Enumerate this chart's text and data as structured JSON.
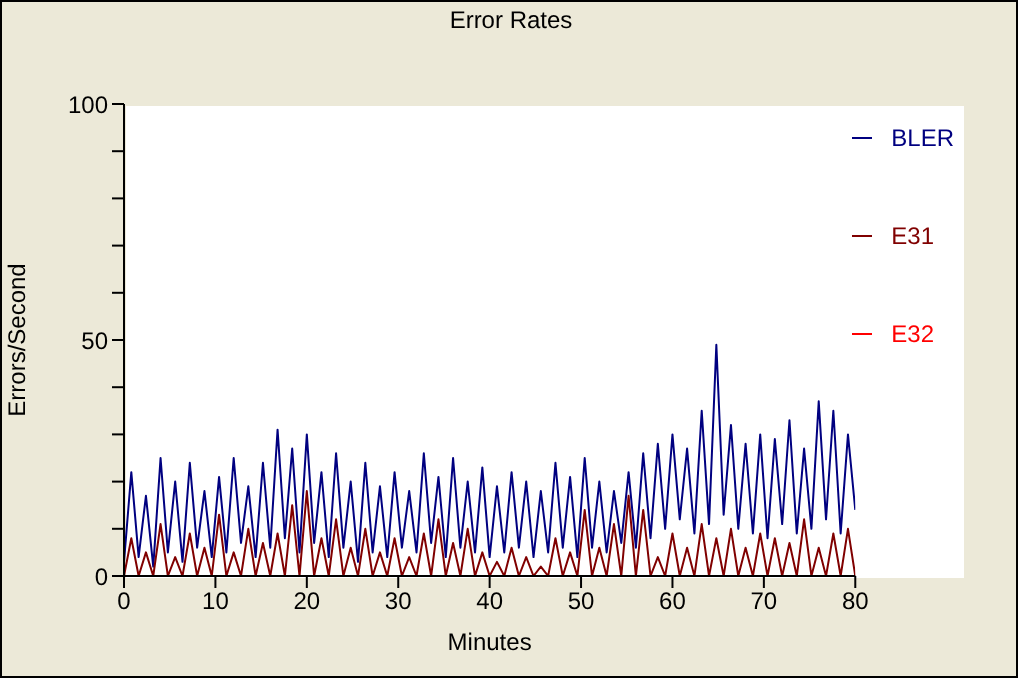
{
  "chart_data": {
    "type": "line",
    "title": "Error Rates",
    "xlabel": "Minutes",
    "ylabel": "Errors/Second",
    "x": [
      0,
      0.8,
      1.6,
      2.4,
      3.2,
      4,
      4.8,
      5.6,
      6.4,
      7.2,
      8,
      8.8,
      9.6,
      10.4,
      11.2,
      12,
      12.8,
      13.6,
      14.4,
      15.2,
      16,
      16.8,
      17.6,
      18.4,
      19.2,
      20,
      20.8,
      21.6,
      22.4,
      23.2,
      24,
      24.8,
      25.6,
      26.4,
      27.2,
      28,
      28.8,
      29.6,
      30.4,
      31.2,
      32,
      32.8,
      33.6,
      34.4,
      35.2,
      36,
      36.8,
      37.6,
      38.4,
      39.2,
      40,
      40.8,
      41.6,
      42.4,
      43.2,
      44,
      44.8,
      45.6,
      46.4,
      47.2,
      48,
      48.8,
      49.6,
      50.4,
      51.2,
      52,
      52.8,
      53.6,
      54.4,
      55.2,
      56,
      56.8,
      57.6,
      58.4,
      59.2,
      60,
      60.8,
      61.6,
      62.4,
      63.2,
      64,
      64.8,
      65.6,
      66.4,
      67.2,
      68,
      68.8,
      69.6,
      70.4,
      71.2,
      72,
      72.8,
      73.6,
      74.4,
      75.2,
      76,
      76.8,
      77.6,
      78.4,
      79.2,
      80
    ],
    "series": [
      {
        "name": "BLER",
        "color": "#000080",
        "values": [
          3,
          22,
          4,
          17,
          2,
          25,
          5,
          20,
          3,
          24,
          6,
          18,
          4,
          21,
          5,
          25,
          7,
          19,
          4,
          24,
          6,
          31,
          8,
          27,
          5,
          30,
          7,
          22,
          4,
          26,
          6,
          20,
          3,
          24,
          5,
          19,
          4,
          22,
          6,
          18,
          5,
          26,
          7,
          21,
          4,
          25,
          6,
          20,
          5,
          23,
          4,
          19,
          5,
          22,
          6,
          20,
          4,
          18,
          5,
          24,
          6,
          21,
          4,
          25,
          6,
          20,
          5,
          18,
          7,
          22,
          6,
          26,
          8,
          28,
          10,
          30,
          12,
          27,
          9,
          35,
          11,
          49,
          13,
          32,
          10,
          28,
          9,
          30,
          8,
          29,
          11,
          33,
          9,
          27,
          10,
          37,
          12,
          35,
          9,
          30,
          14
        ]
      },
      {
        "name": "E31",
        "color": "#800000",
        "values": [
          0,
          8,
          0,
          5,
          0,
          11,
          0,
          4,
          0,
          9,
          0,
          6,
          0,
          13,
          0,
          5,
          0,
          10,
          0,
          7,
          0,
          9,
          0,
          15,
          0,
          18,
          0,
          8,
          0,
          12,
          0,
          6,
          0,
          10,
          0,
          5,
          0,
          8,
          0,
          4,
          0,
          9,
          0,
          12,
          0,
          7,
          0,
          10,
          0,
          5,
          0,
          3,
          0,
          6,
          0,
          4,
          0,
          2,
          0,
          8,
          0,
          5,
          0,
          14,
          0,
          6,
          0,
          11,
          0,
          17,
          0,
          14,
          0,
          4,
          0,
          9,
          0,
          6,
          0,
          11,
          0,
          8,
          0,
          10,
          0,
          6,
          0,
          9,
          0,
          8,
          0,
          7,
          0,
          12,
          0,
          6,
          0,
          9,
          0,
          10,
          0
        ]
      },
      {
        "name": "E32",
        "color": "#ff0000",
        "values": [
          null,
          null,
          null,
          null,
          null,
          null,
          null,
          null,
          null,
          null,
          null,
          null,
          null,
          null,
          null,
          null,
          null,
          null,
          null,
          null,
          null,
          null,
          null,
          null,
          null,
          null,
          null,
          null,
          null,
          null,
          null,
          null,
          null,
          null,
          null,
          null,
          null,
          null,
          null,
          null,
          null,
          null,
          null,
          null,
          null,
          null,
          null,
          null,
          null,
          null,
          null,
          null,
          null,
          null,
          null,
          null,
          null,
          null,
          null,
          null,
          null,
          null,
          null,
          null,
          null,
          null,
          null,
          null,
          null,
          null,
          null,
          null,
          null,
          null,
          null,
          null,
          null,
          null,
          null,
          null,
          null,
          null,
          null,
          null,
          null,
          null,
          null,
          null,
          null,
          null,
          null,
          null,
          null,
          null,
          null,
          null,
          null,
          null,
          null,
          null,
          null
        ]
      }
    ],
    "xlim": [
      0,
      80
    ],
    "xticks": [
      0,
      10,
      20,
      30,
      40,
      50,
      60,
      70,
      80
    ],
    "ylim": [
      0,
      100
    ],
    "yticks": [
      0,
      {
        "value": 10,
        "label": null
      },
      {
        "value": 20,
        "label": null
      },
      {
        "value": 30,
        "label": null
      },
      {
        "value": 40,
        "label": null
      },
      50,
      {
        "value": 60,
        "label": null
      },
      {
        "value": 70,
        "label": null
      },
      {
        "value": 80,
        "label": null
      },
      {
        "value": 90,
        "label": null
      },
      100
    ],
    "legend": "top right",
    "grid": false
  }
}
